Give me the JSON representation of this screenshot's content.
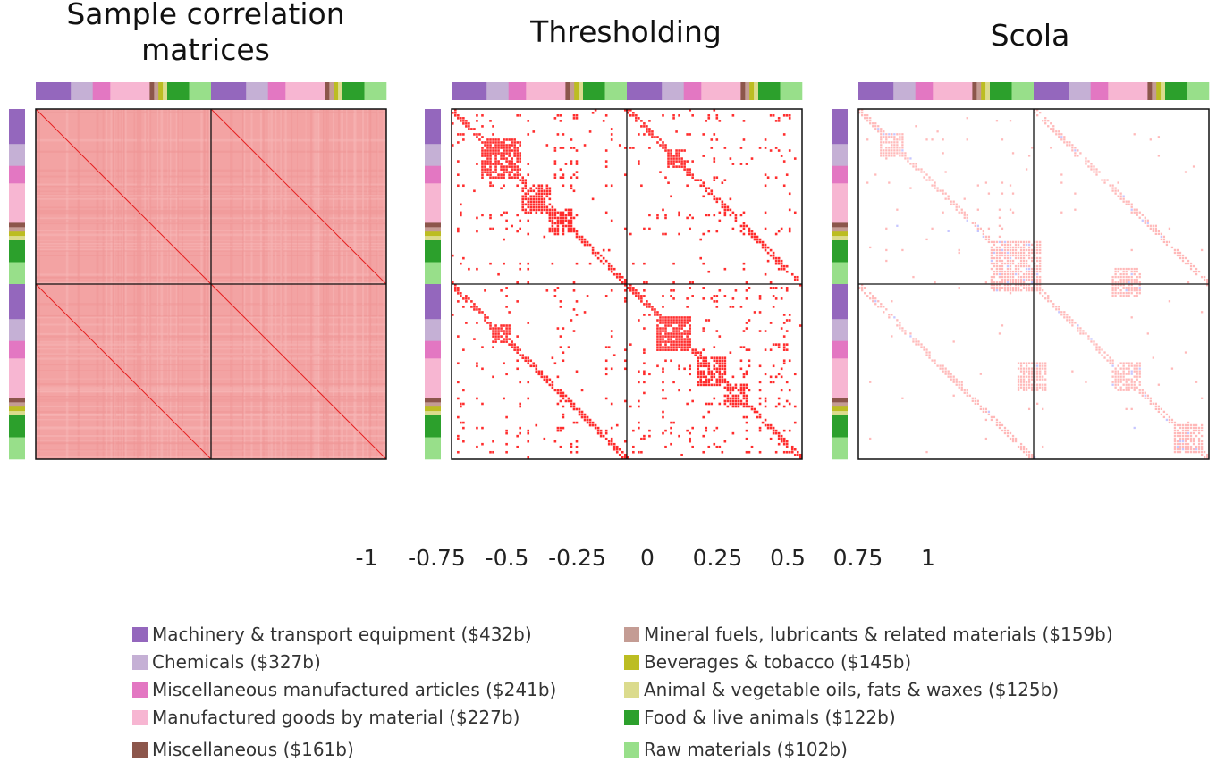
{
  "chart_data": {
    "type": "heatmap",
    "panels": [
      {
        "title_lines": [
          "Sample correlation",
          "matrices"
        ],
        "pattern": "dense",
        "blocks": "2 x 2 (two stacked periods of sectors)"
      },
      {
        "title_lines": [
          "Thresholding"
        ],
        "pattern": "sparse-thresholded"
      },
      {
        "title_lines": [
          "Scola"
        ],
        "pattern": "sparse-scola"
      }
    ],
    "colorbar": {
      "ticks": [
        "-1",
        "-0.75",
        "-0.5",
        "-0.25",
        "0",
        "0.25",
        "0.5",
        "0.75",
        "1"
      ],
      "range": [
        -1,
        1
      ],
      "bin_colors": [
        "#2b2bff",
        "#8c8cff",
        "#aaaaff",
        "#c6c6ff",
        "#ffb9b9",
        "#ffa6a6",
        "#ff8585",
        "#ff2d2d"
      ]
    },
    "categories": [
      {
        "label": "Machinery & transport equipment ($432b)",
        "color": "#9467bd",
        "share": 432
      },
      {
        "label": "Chemicals ($327b)",
        "color": "#c5b0d5",
        "share": 327
      },
      {
        "label": "Miscellaneous manufactured articles ($241b)",
        "color": "#e377c2",
        "share": 241
      },
      {
        "label": "Manufactured goods by material ($227b)",
        "color": "#f7b6d2",
        "share": 227
      },
      {
        "label": "Miscellaneous ($161b)",
        "color": "#8c564b",
        "share": 161
      },
      {
        "label": "Mineral fuels, lubricants & related materials ($159b)",
        "color": "#c49c94",
        "share": 159
      },
      {
        "label": "Beverages & tobacco ($145b)",
        "color": "#bcbd22",
        "share": 145
      },
      {
        "label": "Animal & vegetable oils, fats & waxes ($125b)",
        "color": "#dbdb8d",
        "share": 125
      },
      {
        "label": "Food & live animals ($122b)",
        "color": "#2ca02c",
        "share": 122
      },
      {
        "label": "Raw materials ($102b)",
        "color": "#98df8a",
        "share": 102
      }
    ],
    "category_bar_order": [
      0,
      0,
      0,
      0,
      0,
      0,
      0,
      0,
      1,
      1,
      1,
      1,
      1,
      2,
      2,
      2,
      2,
      3,
      3,
      3,
      3,
      3,
      3,
      3,
      3,
      3,
      4,
      5,
      6,
      7,
      8,
      8,
      8,
      8,
      8,
      9,
      9,
      9,
      9,
      9
    ],
    "grid": false,
    "legend_position": "bottom"
  }
}
